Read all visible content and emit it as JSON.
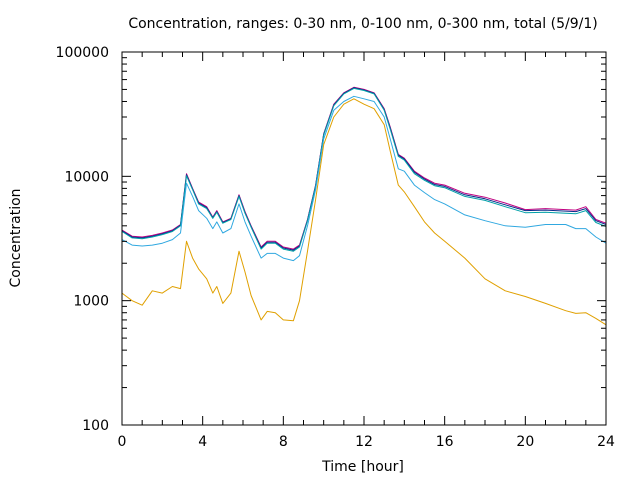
{
  "chart_data": {
    "type": "line",
    "title": "Concentration, ranges: 0-30 nm, 0-100 nm, 0-300 nm, total (5/9/1)",
    "xlabel": "Time [hour]",
    "ylabel": "Concentration",
    "xlim": [
      0,
      24
    ],
    "ylim": [
      100,
      100000
    ],
    "yscale": "log",
    "grid": false,
    "x_ticks": [
      0,
      4,
      8,
      12,
      16,
      20,
      24
    ],
    "x_tick_labels": [
      "0",
      "4",
      "8",
      "12",
      "16",
      "20",
      "24"
    ],
    "y_ticks": [
      100,
      1000,
      10000,
      100000
    ],
    "y_tick_labels": [
      "100",
      "1000",
      "10000",
      "100000"
    ],
    "x": [
      0,
      0.5,
      1,
      1.5,
      2,
      2.5,
      2.9,
      3.2,
      3.5,
      3.8,
      4.2,
      4.5,
      4.7,
      5,
      5.4,
      5.8,
      6.1,
      6.4,
      6.9,
      7.2,
      7.6,
      8,
      8.5,
      8.8,
      9.2,
      9.6,
      10,
      10.5,
      11,
      11.5,
      12,
      12.5,
      13,
      13.3,
      13.7,
      14,
      14.5,
      15,
      15.5,
      16,
      17,
      18,
      19,
      20,
      21,
      22,
      22.5,
      23,
      23.5,
      24
    ],
    "series": [
      {
        "color": "#c00080",
        "values": [
          3700,
          3300,
          3250,
          3350,
          3500,
          3700,
          4100,
          10500,
          8000,
          6200,
          5700,
          4700,
          5300,
          4300,
          4600,
          7100,
          5200,
          4000,
          2700,
          3000,
          3000,
          2700,
          2600,
          2800,
          4500,
          8500,
          22000,
          38000,
          47000,
          52000,
          50000,
          47000,
          35000,
          25000,
          15000,
          14000,
          11000,
          9700,
          8800,
          8500,
          7300,
          6800,
          6100,
          5400,
          5500,
          5400,
          5350,
          5700,
          4500,
          4200
        ]
      },
      {
        "color": "#0a2a8a",
        "values": [
          3650,
          3250,
          3200,
          3300,
          3450,
          3650,
          4050,
          10300,
          7900,
          6100,
          5600,
          4650,
          5200,
          4250,
          4550,
          7000,
          5100,
          3950,
          2650,
          2950,
          2950,
          2650,
          2550,
          2750,
          4450,
          8400,
          21800,
          37500,
          46500,
          51500,
          49500,
          46500,
          34500,
          24500,
          14800,
          13800,
          10800,
          9500,
          8600,
          8300,
          7100,
          6600,
          5900,
          5300,
          5350,
          5250,
          5200,
          5500,
          4400,
          4100
        ]
      },
      {
        "color": "#00a0a8",
        "values": [
          3600,
          3200,
          3150,
          3250,
          3400,
          3600,
          4000,
          10100,
          7800,
          6000,
          5500,
          4600,
          5150,
          4200,
          4500,
          6900,
          5050,
          3900,
          2600,
          2900,
          2900,
          2600,
          2500,
          2700,
          4400,
          8300,
          21500,
          37000,
          46000,
          51000,
          49000,
          46000,
          34000,
          24000,
          14500,
          13500,
          10500,
          9300,
          8400,
          8100,
          6900,
          6400,
          5700,
          5100,
          5150,
          5050,
          5000,
          5300,
          4250,
          3950
        ]
      },
      {
        "color": "#30a8e0",
        "values": [
          3100,
          2800,
          2750,
          2800,
          2900,
          3100,
          3500,
          8800,
          6900,
          5300,
          4600,
          3800,
          4300,
          3500,
          3800,
          6000,
          4300,
          3300,
          2200,
          2400,
          2400,
          2200,
          2100,
          2300,
          4000,
          7800,
          20000,
          34000,
          40000,
          44000,
          42000,
          40000,
          30000,
          20000,
          11500,
          11000,
          8500,
          7400,
          6500,
          6000,
          4900,
          4400,
          4000,
          3900,
          4100,
          4100,
          3800,
          3800,
          3250,
          2900
        ]
      },
      {
        "color": "#e0a000",
        "values": [
          1150,
          1000,
          920,
          1200,
          1150,
          1300,
          1250,
          3000,
          2200,
          1800,
          1500,
          1150,
          1300,
          950,
          1150,
          2500,
          1700,
          1100,
          700,
          820,
          800,
          700,
          690,
          1000,
          2500,
          6500,
          18000,
          30000,
          38000,
          42000,
          38000,
          35000,
          26000,
          16000,
          8500,
          7500,
          5700,
          4300,
          3500,
          3000,
          2200,
          1500,
          1200,
          1080,
          950,
          830,
          790,
          800,
          720,
          640
        ]
      }
    ]
  }
}
